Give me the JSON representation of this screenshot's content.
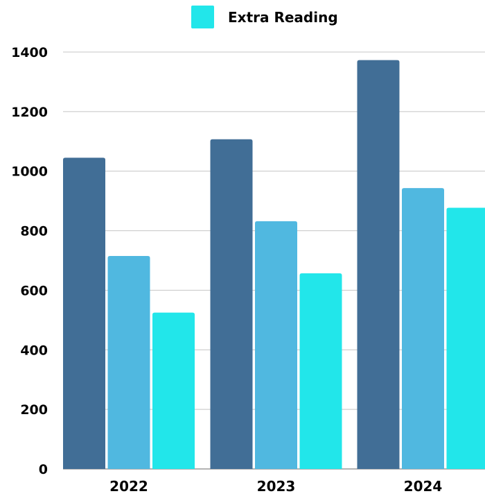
{
  "chart_data": {
    "type": "bar",
    "categories": [
      "2022",
      "2023",
      "2024"
    ],
    "series": [
      {
        "values": [
          1045,
          1107,
          1373
        ],
        "color": "#416e96"
      },
      {
        "values": [
          715,
          832,
          943
        ],
        "color": "#50b8e0"
      },
      {
        "name": "Extra Reading",
        "values": [
          525,
          657,
          877
        ],
        "color": "#22e6ea"
      }
    ],
    "yticks": [
      0,
      200,
      400,
      600,
      800,
      1000,
      1200,
      1400
    ],
    "ylim": [
      0,
      1400
    ],
    "grid": true,
    "legend": {
      "position": "top-center",
      "entries": [
        "Extra Reading"
      ]
    }
  }
}
